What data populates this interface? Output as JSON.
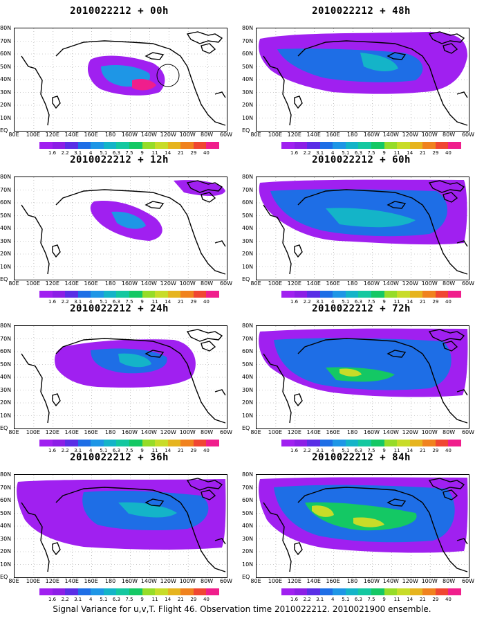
{
  "caption": "Signal Variance for u,v,T. Flight 46. Observation time 2010022212. 2010021900 ensemble.",
  "latitude_labels": [
    "80N",
    "70N",
    "60N",
    "50N",
    "40N",
    "30N",
    "20N",
    "10N",
    "EQ"
  ],
  "longitude_labels": [
    "80E",
    "100E",
    "120E",
    "140E",
    "160E",
    "180",
    "160W",
    "140W",
    "120W",
    "100W",
    "80W",
    "60W"
  ],
  "colorbar": {
    "labels": [
      "1.6",
      "2.2",
      "3.1",
      "4",
      "5.1",
      "6.3",
      "7.5",
      "9",
      "11",
      "14",
      "21",
      "29",
      "40"
    ],
    "colors": [
      "#a020f0",
      "#8c1ee6",
      "#5a2ee6",
      "#1e6ee6",
      "#1e96e6",
      "#14b4c8",
      "#14c8a0",
      "#14c864",
      "#96dc28",
      "#c8dc28",
      "#e6b41e",
      "#f0821e",
      "#f04632",
      "#f01e8c"
    ]
  },
  "panels": [
    {
      "title": "2010022212 + 00h"
    },
    {
      "title": "2010022212 + 48h"
    },
    {
      "title": "2010022212 + 12h"
    },
    {
      "title": "2010022212 + 60h"
    },
    {
      "title": "2010022212 + 24h"
    },
    {
      "title": "2010022212 + 72h"
    },
    {
      "title": "2010022212 + 36h"
    },
    {
      "title": "2010022212 + 84h"
    }
  ]
}
